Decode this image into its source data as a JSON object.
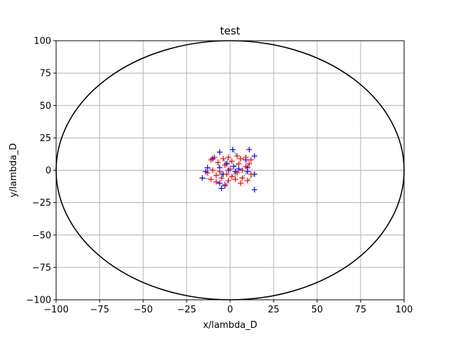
{
  "chart_data": {
    "type": "scatter",
    "title": "test",
    "xlabel": "x/lambda_D",
    "ylabel": "y/lambda_D",
    "xlim": [
      -100,
      100
    ],
    "ylim": [
      -100,
      100
    ],
    "xticks": [
      -100,
      -75,
      -50,
      -25,
      0,
      25,
      50,
      75,
      100
    ],
    "yticks": [
      -100,
      -75,
      -50,
      -25,
      0,
      25,
      50,
      75,
      100
    ],
    "xtick_labels": [
      "−100",
      "−75",
      "−50",
      "−25",
      "0",
      "25",
      "50",
      "75",
      "100"
    ],
    "ytick_labels": [
      "−100",
      "−75",
      "−50",
      "−25",
      "0",
      "25",
      "50",
      "75",
      "100"
    ],
    "grid": true,
    "boundary_circle": {
      "cx": 0,
      "cy": 0,
      "r": 100,
      "color": "#000000"
    },
    "colors": {
      "blue": "#0000ff",
      "red": "#ff0000",
      "trail": "#2ca0a0",
      "grid": "#b0b0b0"
    },
    "series": [
      {
        "color": "blue",
        "marker": "+",
        "points": [
          [
            -6,
            14
          ],
          [
            1.5,
            16
          ],
          [
            11,
            16
          ],
          [
            14,
            11
          ],
          [
            -10,
            9
          ],
          [
            9,
            8
          ],
          [
            -2,
            5
          ],
          [
            2,
            3
          ],
          [
            -13,
            2
          ],
          [
            -6,
            2
          ],
          [
            5,
            1
          ],
          [
            10,
            2
          ],
          [
            -1,
            0
          ],
          [
            -14,
            -1
          ],
          [
            10,
            -1
          ],
          [
            3,
            -1
          ],
          [
            14,
            -3
          ],
          [
            -4,
            -3
          ],
          [
            -16,
            -6
          ],
          [
            -6,
            -10
          ],
          [
            -3,
            -12
          ],
          [
            -5,
            -14
          ],
          [
            14,
            -15
          ]
        ]
      },
      {
        "color": "red",
        "marker": "+",
        "points": [
          [
            -9,
            10
          ],
          [
            4,
            11
          ],
          [
            -1,
            10
          ],
          [
            9,
            10
          ],
          [
            -4,
            9
          ],
          [
            6,
            9
          ],
          [
            -11,
            8
          ],
          [
            12,
            8
          ],
          [
            -7,
            6
          ],
          [
            1,
            7
          ],
          [
            11,
            5
          ],
          [
            -3,
            4
          ],
          [
            5,
            5
          ],
          [
            9,
            3
          ],
          [
            0,
            1
          ],
          [
            -10,
            0
          ],
          [
            7,
            0
          ],
          [
            -6,
            -1
          ],
          [
            4,
            -2
          ],
          [
            -13,
            -2
          ],
          [
            12,
            -3
          ],
          [
            -2,
            -3
          ],
          [
            -8,
            -4
          ],
          [
            1,
            -5
          ],
          [
            7,
            -6
          ],
          [
            -5,
            -6
          ],
          [
            -11,
            -7
          ],
          [
            3,
            -7
          ],
          [
            -1,
            -8
          ],
          [
            10,
            -8
          ],
          [
            -8,
            -9
          ],
          [
            6,
            -10
          ],
          [
            -3,
            -11
          ]
        ]
      }
    ]
  }
}
